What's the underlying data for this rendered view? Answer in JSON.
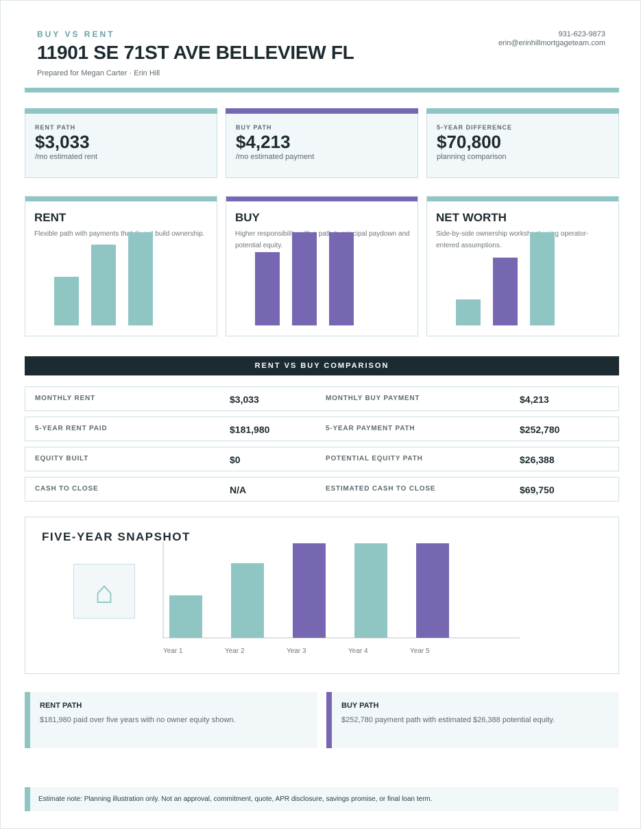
{
  "header": {
    "eyebrow": "BUY VS RENT",
    "title": "11901 SE 71ST AVE BELLEVIEW FL",
    "prepared": "Prepared for Megan Carter · Erin Hill",
    "phone": "931-623-9873",
    "email": "erin@erinhillmortgageteam.com"
  },
  "colors": {
    "teal": "#8fc6c4",
    "purple": "#7767b3",
    "navy": "#1c2b31"
  },
  "stats": [
    {
      "label": "RENT PATH",
      "value": "$3,033",
      "sub": "/mo estimated rent",
      "color": "#8fc6c4"
    },
    {
      "label": "BUY PATH",
      "value": "$4,213",
      "sub": "/mo estimated payment",
      "color": "#7767b3"
    },
    {
      "label": "5-YEAR DIFFERENCE",
      "value": "$70,800",
      "sub": "planning comparison",
      "color": "#8fc6c4"
    }
  ],
  "paths": [
    {
      "title": "RENT",
      "desc": "Flexible path with payments that do not build ownership.",
      "color": "#8fc6c4"
    },
    {
      "title": "BUY",
      "desc": "Higher responsibility with a path to principal paydown and potential equity.",
      "color": "#7767b3"
    },
    {
      "title": "NET WORTH",
      "desc": "Side-by-side ownership worksheet using operator-entered assumptions.",
      "color": "#8fc6c4"
    }
  ],
  "comparison": {
    "heading": "RENT VS BUY COMPARISON",
    "rows": [
      {
        "k1": "MONTHLY RENT",
        "v1": "$3,033",
        "k2": "MONTHLY BUY PAYMENT",
        "v2": "$4,213"
      },
      {
        "k1": "5-YEAR RENT PAID",
        "v1": "$181,980",
        "k2": "5-YEAR PAYMENT PATH",
        "v2": "$252,780"
      },
      {
        "k1": "EQUITY BUILT",
        "v1": "$0",
        "k2": "POTENTIAL EQUITY PATH",
        "v2": "$26,388"
      },
      {
        "k1": "CASH TO CLOSE",
        "v1": "N/A",
        "k2": "ESTIMATED CASH TO CLOSE",
        "v2": "$69,750"
      }
    ]
  },
  "snapshot": {
    "title": "FIVE-YEAR SNAPSHOT",
    "house_icon": "house-icon"
  },
  "notes": [
    {
      "title": "RENT PATH",
      "text": "$181,980 paid over five years with no owner equity shown.",
      "color": "#8fc6c4"
    },
    {
      "title": "BUY PATH",
      "text": "$252,780 payment path with estimated $26,388 potential equity.",
      "color": "#7767b3"
    }
  ],
  "disclaimer": "Estimate note: Planning illustration only. Not an approval, commitment, quote, APR disclosure, savings promise, or final loan term.",
  "chart_data": [
    {
      "type": "bar",
      "chart": "rent-card",
      "values": [
        52,
        87,
        100
      ],
      "colors": [
        "#8fc6c4",
        "#8fc6c4",
        "#8fc6c4"
      ]
    },
    {
      "type": "bar",
      "chart": "buy-card",
      "values": [
        79,
        100,
        100
      ],
      "colors": [
        "#7767b3",
        "#7767b3",
        "#7767b3"
      ]
    },
    {
      "type": "bar",
      "chart": "net-worth-card",
      "values": [
        28,
        73,
        100
      ],
      "colors": [
        "#8fc6c4",
        "#7767b3",
        "#8fc6c4"
      ]
    },
    {
      "type": "bar",
      "chart": "five-year-snapshot",
      "categories": [
        "Year 1",
        "Year 2",
        "Year 3",
        "Year 4",
        "Year 5"
      ],
      "values": [
        45,
        79,
        100,
        100,
        100
      ],
      "colors": [
        "#8fc6c4",
        "#8fc6c4",
        "#7767b3",
        "#8fc6c4",
        "#7767b3"
      ]
    }
  ]
}
